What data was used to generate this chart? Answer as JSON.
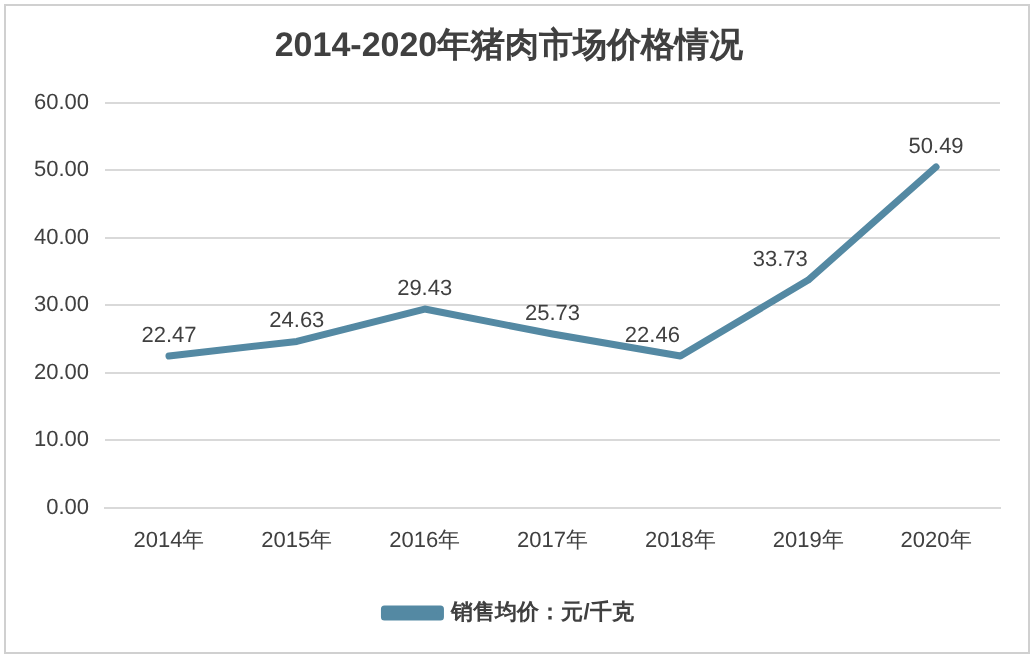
{
  "chart_data": {
    "type": "line",
    "title": "2014-2020年猪肉市场价格情况",
    "categories": [
      "2014年",
      "2015年",
      "2016年",
      "2017年",
      "2018年",
      "2019年",
      "2020年"
    ],
    "series": [
      {
        "name": "销售均价：元/千克",
        "color": "#5489a3",
        "values": [
          22.47,
          24.63,
          29.43,
          25.73,
          22.46,
          33.73,
          50.49
        ]
      }
    ],
    "ylim": [
      0,
      60
    ],
    "yticks": [
      {
        "value": 0,
        "label": "0.00"
      },
      {
        "value": 10,
        "label": "10.00"
      },
      {
        "value": 20,
        "label": "20.00"
      },
      {
        "value": 30,
        "label": "30.00"
      },
      {
        "value": 40,
        "label": "40.00"
      },
      {
        "value": 50,
        "label": "50.00"
      },
      {
        "value": 60,
        "label": "60.00"
      }
    ],
    "grid": "y",
    "legend": "bottom",
    "marker": "none",
    "line_style": "solid",
    "data_labels": true
  }
}
